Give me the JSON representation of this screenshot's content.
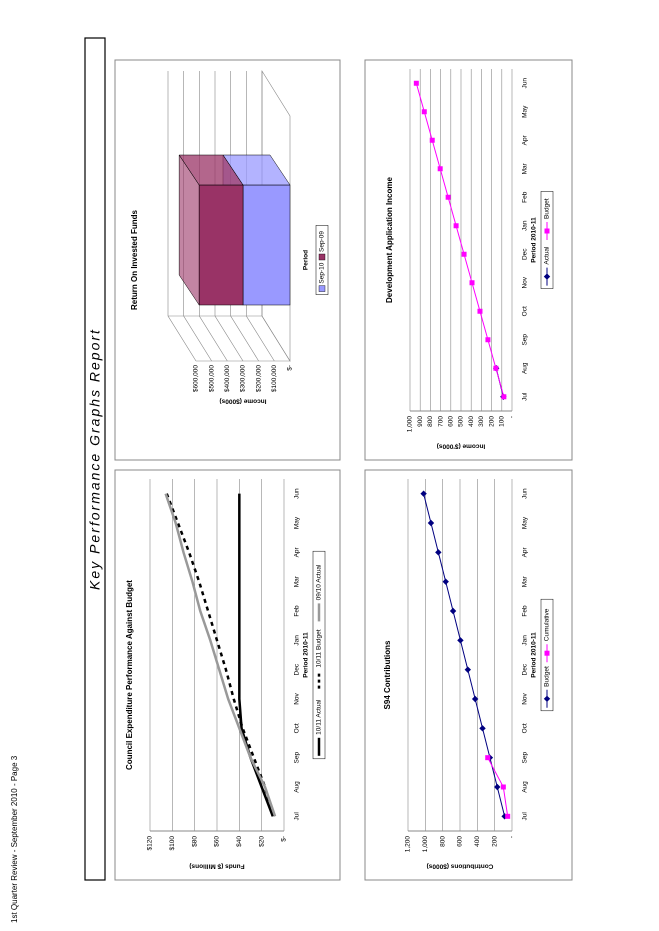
{
  "page_title": "Key Performance Graphs Report",
  "footer": "1st Quarter Review - September 2010 - Page 3",
  "chart_data": [
    {
      "type": "line",
      "title": "Council Expenditure Performance Against Budget",
      "y_label": "Funds ($ Millions)",
      "x_label": "Period 2010-11",
      "categories": [
        "Jul",
        "Aug",
        "Sep",
        "Oct",
        "Nov",
        "Dec",
        "Jan",
        "Feb",
        "Mar",
        "Apr",
        "May",
        "Jun"
      ],
      "ylim": [
        0,
        120
      ],
      "yticks": [
        {
          "value": 0,
          "label": "$-"
        },
        {
          "value": 20,
          "label": "$20"
        },
        {
          "value": 40,
          "label": "$40"
        },
        {
          "value": 60,
          "label": "$60"
        },
        {
          "value": 80,
          "label": "$80"
        },
        {
          "value": 100,
          "label": "$100"
        },
        {
          "value": 120,
          "label": "$120"
        }
      ],
      "grid": true,
      "series": [
        {
          "name": "10/11 Actual",
          "color": "#000000",
          "width": 2.5,
          "values": [
            10,
            20,
            30,
            38,
            40,
            40,
            40,
            40,
            40,
            40,
            40,
            40
          ]
        },
        {
          "name": "10/11 Budget",
          "color": "#000000",
          "width": 2.5,
          "dash": true,
          "values": [
            10,
            17,
            27,
            37,
            45,
            52,
            60,
            68,
            76,
            85,
            95,
            105
          ]
        },
        {
          "name": "09/10 Actual",
          "color": "#999999",
          "width": 2.5,
          "values": [
            8,
            17,
            30,
            40,
            50,
            58,
            66,
            75,
            82,
            90,
            97,
            106
          ]
        }
      ]
    },
    {
      "type": "bar3d",
      "title": "Return On Invested Funds",
      "y_label": "Income ($000s)",
      "x_label": "Period",
      "ylim": [
        0,
        600000
      ],
      "yticks": [
        {
          "value": 0,
          "label": "$-"
        },
        {
          "value": 100000,
          "label": "$100,000"
        },
        {
          "value": 200000,
          "label": "$200,000"
        },
        {
          "value": 300000,
          "label": "$300,000"
        },
        {
          "value": 400000,
          "label": "$400,000"
        },
        {
          "value": 500000,
          "label": "$500,000"
        },
        {
          "value": 600000,
          "label": "$600,000"
        }
      ],
      "grid": true,
      "series": [
        {
          "name": "Sep-10",
          "color": "#9999ff",
          "values": [
            300000
          ]
        },
        {
          "name": "Sep-09",
          "color": "#993366",
          "values": [
            280000
          ]
        }
      ]
    },
    {
      "type": "line",
      "title": "S94 Contributions",
      "y_label": "Contributions ($000s)",
      "x_label": "Period 2010-11",
      "categories": [
        "Jul",
        "Aug",
        "Sep",
        "Oct",
        "Nov",
        "Dec",
        "Jan",
        "Feb",
        "Mar",
        "Apr",
        "May",
        "Jun"
      ],
      "ylim": [
        0,
        1200
      ],
      "yticks": [
        {
          "value": 0,
          "label": "-"
        },
        200,
        400,
        600,
        800,
        {
          "value": 1000,
          "label": "1,000"
        },
        {
          "value": 1200,
          "label": "1,200"
        }
      ],
      "grid": true,
      "series": [
        {
          "name": "Budget",
          "color": "#000080",
          "marker": "diamond",
          "values": [
            85,
            170,
            255,
            340,
            425,
            510,
            595,
            680,
            765,
            850,
            935,
            1020
          ]
        },
        {
          "name": "Cumulative",
          "color": "#ff00ff",
          "marker": "square",
          "values": [
            50,
            100,
            280,
            null,
            null,
            null,
            null,
            null,
            null,
            null,
            null,
            null
          ]
        }
      ]
    },
    {
      "type": "line",
      "title": "Development Application Income",
      "y_label": "Income ($'000s)",
      "x_label": "Period 2010-11",
      "categories": [
        "Jul",
        "Aug",
        "Sep",
        "Oct",
        "Nov",
        "Dec",
        "Jan",
        "Feb",
        "Mar",
        "Apr",
        "May",
        "Jun"
      ],
      "ylim": [
        0,
        1000
      ],
      "yticks": [
        {
          "value": 0,
          "label": "-"
        },
        100,
        200,
        300,
        400,
        500,
        600,
        700,
        800,
        900,
        {
          "value": 1000,
          "label": "1,000"
        }
      ],
      "grid": true,
      "series": [
        {
          "name": "Actual",
          "color": "#000080",
          "marker": "diamond",
          "values": [
            85,
            155,
            null,
            null,
            null,
            null,
            null,
            null,
            null,
            null,
            null,
            null
          ]
        },
        {
          "name": "Budget",
          "color": "#ff00ff",
          "marker": "square",
          "values": [
            80,
            158,
            236,
            314,
            392,
            470,
            548,
            626,
            704,
            782,
            860,
            938
          ]
        }
      ]
    }
  ]
}
